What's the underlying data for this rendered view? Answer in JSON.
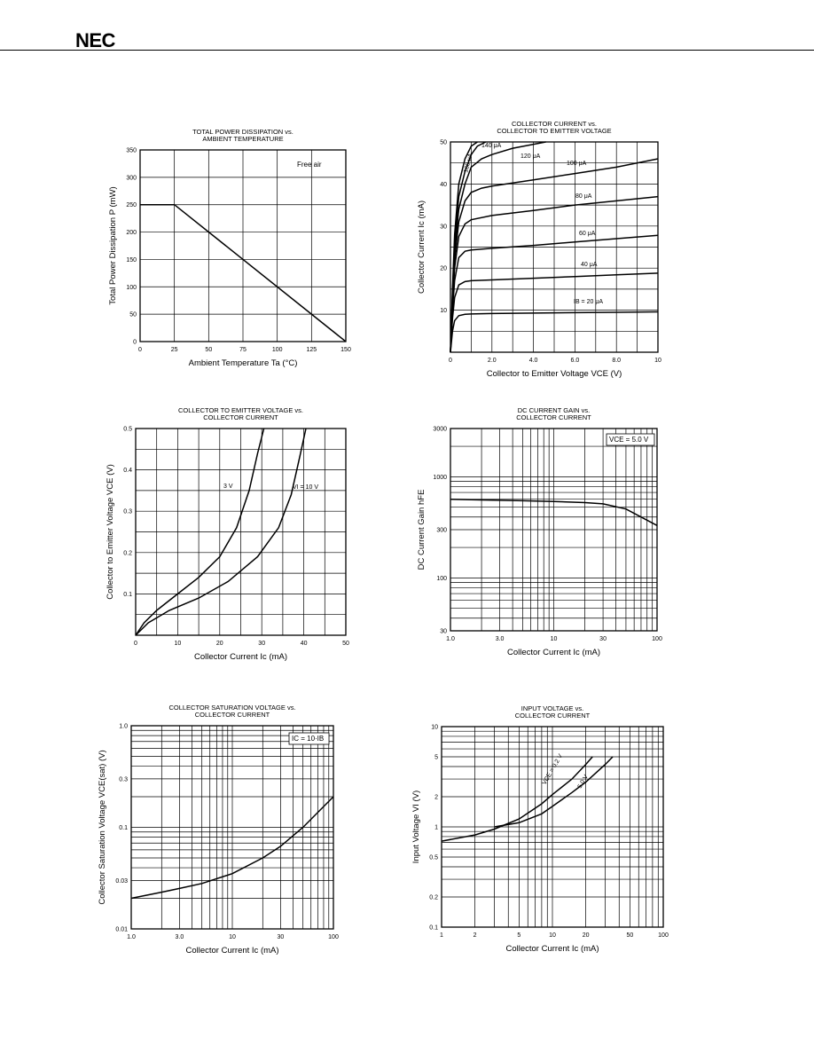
{
  "page": {
    "brand": "NEC"
  },
  "chart_data": [
    {
      "type": "line",
      "title": "TOTAL POWER DISSIPATION vs.\nAMBIENT TEMPERATURE",
      "xlabel": "Ambient Temperature Ta (°C)",
      "ylabel": "Total Power Dissipation P (mW)",
      "xlim": [
        0,
        150
      ],
      "ylim": [
        0,
        350
      ],
      "xticks": [
        0,
        25,
        50,
        75,
        100,
        125,
        150
      ],
      "yticks": [
        0,
        50,
        100,
        150,
        200,
        250,
        300,
        350
      ],
      "annotations": [
        {
          "text": "Free air",
          "x": 115,
          "y": 325
        }
      ],
      "series": [
        {
          "name": "",
          "x": [
            0,
            25,
            150
          ],
          "y": [
            250,
            250,
            0
          ]
        }
      ]
    },
    {
      "type": "line",
      "title": "COLLECTOR CURRENT vs.\nCOLLECTOR TO EMITTER VOLTAGE",
      "xlabel": "Collector to Emitter Voltage VCE (V)",
      "ylabel": "Collector Current Ic (mA)",
      "xlim": [
        0,
        10
      ],
      "ylim": [
        0,
        50
      ],
      "xticks": [
        0,
        2.0,
        4.0,
        6.0,
        8.0,
        10
      ],
      "xtick_labels": [
        "0",
        "2.0",
        "4.0",
        "6.0",
        "8.0",
        "10"
      ],
      "yticks": [
        10,
        20,
        30,
        40,
        50
      ],
      "series": [
        {
          "name": "IB = 20 μA",
          "x": [
            0,
            0.1,
            0.2,
            0.4,
            0.7,
            1,
            2,
            4,
            6,
            8,
            10
          ],
          "y": [
            0,
            5,
            7.5,
            8.7,
            9,
            9.1,
            9.2,
            9.3,
            9.4,
            9.5,
            9.6
          ]
        },
        {
          "name": "40 μA",
          "x": [
            0,
            0.1,
            0.2,
            0.4,
            0.7,
            1,
            2,
            4,
            6,
            8,
            10
          ],
          "y": [
            0,
            8,
            13,
            16,
            16.8,
            17,
            17.2,
            17.6,
            18,
            18.4,
            18.8
          ]
        },
        {
          "name": "60 μA",
          "x": [
            0,
            0.1,
            0.2,
            0.4,
            0.7,
            1,
            2,
            4,
            6,
            8,
            10
          ],
          "y": [
            0,
            10,
            17,
            22.5,
            24,
            24.3,
            24.7,
            25.4,
            26.2,
            27,
            27.8
          ]
        },
        {
          "name": "80 μA",
          "x": [
            0,
            0.1,
            0.2,
            0.4,
            0.7,
            1,
            2,
            4,
            6,
            8,
            10
          ],
          "y": [
            0,
            11,
            20,
            27.5,
            30.5,
            31.5,
            32.5,
            33.7,
            35,
            36,
            37
          ]
        },
        {
          "name": "100 μA",
          "x": [
            0,
            0.1,
            0.2,
            0.4,
            0.7,
            1,
            1.5,
            2,
            4,
            6,
            8,
            10
          ],
          "y": [
            0,
            12,
            22,
            31,
            36,
            38,
            39,
            39.5,
            41,
            42.5,
            44,
            46
          ]
        },
        {
          "name": "120 μA",
          "x": [
            0,
            0.1,
            0.2,
            0.4,
            0.7,
            1,
            1.5,
            2,
            3,
            4.6
          ],
          "y": [
            0,
            13,
            24,
            34,
            40,
            44,
            46,
            47,
            48.5,
            50
          ]
        },
        {
          "name": "140 μA",
          "x": [
            0,
            0.1,
            0.2,
            0.4,
            0.7,
            1,
            1.3,
            1.7
          ],
          "y": [
            0,
            14,
            26,
            37,
            43,
            47,
            49,
            50
          ]
        },
        {
          "name": "160 μA",
          "x": [
            0,
            0.1,
            0.2,
            0.4,
            0.7,
            1,
            1.3
          ],
          "y": [
            0,
            15,
            28,
            40,
            46,
            49,
            50
          ]
        }
      ]
    },
    {
      "type": "line",
      "title": "COLLECTOR TO EMITTER VOLTAGE vs.\nCOLLECTOR CURRENT",
      "xlabel": "Collector Current Ic (mA)",
      "ylabel": "Collector to Emitter Voltage VCE (V)",
      "xlim": [
        0,
        50
      ],
      "ylim": [
        0,
        0.5
      ],
      "xticks": [
        0,
        10,
        20,
        30,
        40,
        50
      ],
      "yticks": [
        0,
        0.1,
        0.2,
        0.3,
        0.4,
        0.5
      ],
      "ytick_labels": [
        "",
        "0.1",
        "0.2",
        "0.3",
        "0.4",
        "0.5"
      ],
      "series": [
        {
          "name": "3 V",
          "x": [
            0,
            2,
            5,
            10,
            15,
            20,
            24,
            27,
            29,
            30.5
          ],
          "y": [
            0,
            0.03,
            0.06,
            0.1,
            0.14,
            0.19,
            0.26,
            0.35,
            0.44,
            0.5
          ]
        },
        {
          "name": "VI = 10 V",
          "x": [
            0,
            3,
            8,
            15,
            22,
            29,
            34,
            37,
            39,
            40.5
          ],
          "y": [
            0,
            0.03,
            0.06,
            0.09,
            0.13,
            0.19,
            0.26,
            0.34,
            0.43,
            0.5
          ]
        }
      ]
    },
    {
      "type": "line",
      "title": "DC CURRENT GAIN vs.\nCOLLECTOR CURRENT",
      "xlabel": "Collector Current Ic (mA)",
      "ylabel": "DC Current Gain hFE",
      "xscale": "log",
      "yscale": "log",
      "xlim": [
        1,
        100
      ],
      "ylim": [
        30,
        3000
      ],
      "xticks": [
        1,
        3,
        10,
        30,
        100
      ],
      "xtick_labels": [
        "1.0",
        "3.0",
        "10",
        "30",
        "100"
      ],
      "yticks": [
        30,
        100,
        300,
        1000,
        3000
      ],
      "annotations": [
        {
          "text": "VCE = 5.0 V"
        }
      ],
      "series": [
        {
          "name": "VCE = 5.0 V",
          "x": [
            1,
            2,
            5,
            10,
            20,
            30,
            50,
            100
          ],
          "y": [
            600,
            590,
            580,
            570,
            555,
            540,
            480,
            330
          ]
        }
      ]
    },
    {
      "type": "line",
      "title": "COLLECTOR SATURATION VOLTAGE vs.\nCOLLECTOR CURRENT",
      "xlabel": "Collector Current Ic (mA)",
      "ylabel": "Collector Saturation Voltage VCE(sat) (V)",
      "xscale": "log",
      "yscale": "log",
      "xlim": [
        1,
        100
      ],
      "ylim": [
        0.01,
        1.0
      ],
      "xticks": [
        1,
        3,
        10,
        30,
        100
      ],
      "xtick_labels": [
        "1.0",
        "3.0",
        "10",
        "30",
        "100"
      ],
      "yticks": [
        0.01,
        0.03,
        0.1,
        0.3,
        1.0
      ],
      "ytick_labels": [
        "0.01",
        "0.03",
        "0.1",
        "0.3",
        "1.0"
      ],
      "annotations": [
        {
          "text": "IC = 10·IB"
        }
      ],
      "series": [
        {
          "name": "IC = 10·IB",
          "x": [
            1,
            2,
            3,
            5,
            10,
            20,
            30,
            50,
            100
          ],
          "y": [
            0.02,
            0.023,
            0.025,
            0.028,
            0.035,
            0.05,
            0.065,
            0.1,
            0.2
          ]
        }
      ]
    },
    {
      "type": "line",
      "title": "INPUT VOLTAGE vs.\nCOLLECTOR CURRENT",
      "xlabel": "Collector Current Ic (mA)",
      "ylabel": "Input Voltage VI (V)",
      "xscale": "log",
      "yscale": "log",
      "xlim": [
        1,
        100
      ],
      "ylim": [
        0.1,
        10
      ],
      "xticks": [
        1,
        2,
        5,
        10,
        20,
        50,
        100
      ],
      "xtick_labels": [
        "1",
        "2",
        "5",
        "10",
        "20",
        "50",
        "100"
      ],
      "yticks": [
        0.1,
        0.2,
        0.5,
        1,
        2,
        5,
        10
      ],
      "ytick_labels": [
        "0.1",
        "0.2",
        "0.5",
        "1",
        "2",
        "5",
        "10"
      ],
      "series": [
        {
          "name": "VCE = 0.2 V",
          "x": [
            1,
            2,
            3,
            5,
            8,
            10,
            15,
            20,
            23
          ],
          "y": [
            0.72,
            0.83,
            0.95,
            1.2,
            1.7,
            2.1,
            3,
            4.2,
            5
          ]
        },
        {
          "name": "5.0 V",
          "x": [
            3,
            5,
            8,
            10,
            15,
            20,
            30,
            35
          ],
          "y": [
            1.0,
            1.1,
            1.35,
            1.6,
            2.2,
            2.8,
            4.2,
            5
          ]
        }
      ]
    }
  ]
}
